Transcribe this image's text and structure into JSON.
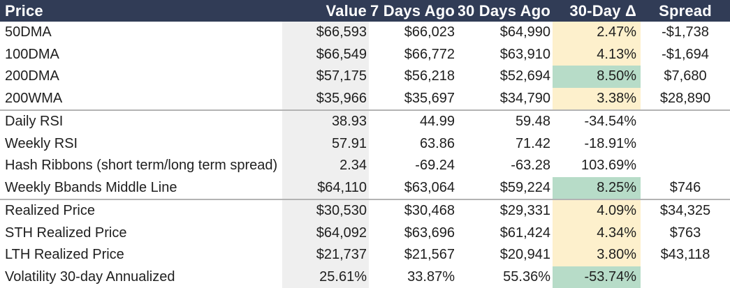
{
  "colors": {
    "header_bg": "#313c56",
    "header_text": "#ffffff",
    "value_column_bg": "#efefef",
    "highlight_yellow": "#fdf0cc",
    "highlight_green": "#b7dcc8",
    "divider_line": "#b3b3b3",
    "body_text": "#1e1e1e"
  },
  "chart_data": {
    "type": "table",
    "columns": [
      "Price",
      "Value",
      "7 Days Ago",
      "30 Days Ago",
      "30-Day Δ",
      "Spread"
    ],
    "rows": [
      [
        "50DMA",
        "$66,593",
        "$66,023",
        "$64,990",
        "2.47%",
        "-$1,738"
      ],
      [
        "100DMA",
        "$66,549",
        "$66,772",
        "$63,910",
        "4.13%",
        "-$1,694"
      ],
      [
        "200DMA",
        "$57,175",
        "$56,218",
        "$52,694",
        "8.50%",
        "$7,680"
      ],
      [
        "200WMA",
        "$35,966",
        "$35,697",
        "$34,790",
        "3.38%",
        "$28,890"
      ],
      [
        "Daily RSI",
        "38.93",
        "44.99",
        "59.48",
        "-34.54%",
        ""
      ],
      [
        "Weekly RSI",
        "57.91",
        "63.86",
        "71.42",
        "-18.91%",
        ""
      ],
      [
        "Hash Ribbons (short term/long term spread)",
        "2.34",
        "-69.24",
        "-63.28",
        "103.69%",
        ""
      ],
      [
        "Weekly Bbands Middle Line",
        "$64,110",
        "$63,064",
        "$59,224",
        "8.25%",
        "$746"
      ],
      [
        "Realized Price",
        "$30,530",
        "$30,468",
        "$29,331",
        "4.09%",
        "$34,325"
      ],
      [
        "STH Realized Price",
        "$64,092",
        "$63,696",
        "$61,424",
        "4.34%",
        "$763"
      ],
      [
        "LTH Realized Price",
        "$21,737",
        "$21,567",
        "$20,941",
        "3.80%",
        "$43,118"
      ],
      [
        "Volatility 30-day Annualized",
        "25.61%",
        "33.87%",
        "55.36%",
        "-53.74%",
        ""
      ]
    ],
    "delta_column_highlights": [
      "yellow",
      "yellow",
      "green",
      "yellow",
      "none",
      "none",
      "none",
      "green",
      "yellow",
      "yellow",
      "yellow",
      "green"
    ],
    "group_dividers_after_rows": [
      4,
      8
    ],
    "legend_position": "none",
    "grid": false
  }
}
